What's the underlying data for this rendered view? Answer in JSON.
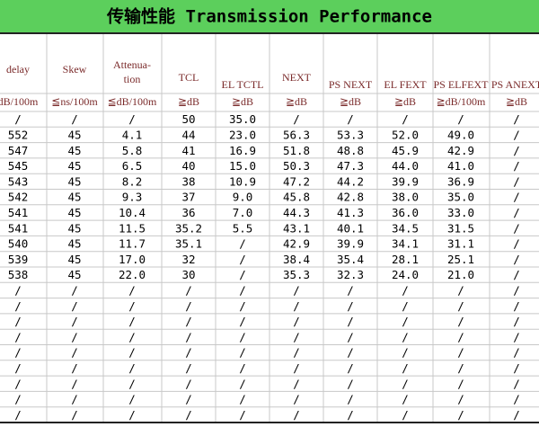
{
  "header": {
    "title": "传输性能 Transmission Performance"
  },
  "table": {
    "columns": [
      {
        "name": [
          "delay"
        ],
        "unit": "dB/100m"
      },
      {
        "name": [
          "Skew"
        ],
        "unit": "≦ns/100m"
      },
      {
        "name": [
          "Attenua-",
          "tion"
        ],
        "unit": "≦dB/100m"
      },
      {
        "name": [
          "TCL"
        ],
        "unit": "≧dB"
      },
      {
        "name": [
          "EL TCTL"
        ],
        "unit": "≧dB"
      },
      {
        "name": [
          "NEXT"
        ],
        "unit": "≧dB"
      },
      {
        "name": [
          "PS NEXT"
        ],
        "unit": "≧dB"
      },
      {
        "name": [
          "EL FEXT"
        ],
        "unit": "≧dB"
      },
      {
        "name": [
          "PS ELFEXT"
        ],
        "unit": "≧dB/100m"
      },
      {
        "name": [
          "PS ANEXT"
        ],
        "unit": "≧dB"
      }
    ],
    "rows": [
      [
        "/",
        "/",
        "/",
        "50",
        "35.0",
        "/",
        "/",
        "/",
        "/",
        "/"
      ],
      [
        "552",
        "45",
        "4.1",
        "44",
        "23.0",
        "56.3",
        "53.3",
        "52.0",
        "49.0",
        "/"
      ],
      [
        "547",
        "45",
        "5.8",
        "41",
        "16.9",
        "51.8",
        "48.8",
        "45.9",
        "42.9",
        "/"
      ],
      [
        "545",
        "45",
        "6.5",
        "40",
        "15.0",
        "50.3",
        "47.3",
        "44.0",
        "41.0",
        "/"
      ],
      [
        "543",
        "45",
        "8.2",
        "38",
        "10.9",
        "47.2",
        "44.2",
        "39.9",
        "36.9",
        "/"
      ],
      [
        "542",
        "45",
        "9.3",
        "37",
        "9.0",
        "45.8",
        "42.8",
        "38.0",
        "35.0",
        "/"
      ],
      [
        "541",
        "45",
        "10.4",
        "36",
        "7.0",
        "44.3",
        "41.3",
        "36.0",
        "33.0",
        "/"
      ],
      [
        "541",
        "45",
        "11.5",
        "35.2",
        "5.5",
        "43.1",
        "40.1",
        "34.5",
        "31.5",
        "/"
      ],
      [
        "540",
        "45",
        "11.7",
        "35.1",
        "/",
        "42.9",
        "39.9",
        "34.1",
        "31.1",
        "/"
      ],
      [
        "539",
        "45",
        "17.0",
        "32",
        "/",
        "38.4",
        "35.4",
        "28.1",
        "25.1",
        "/"
      ],
      [
        "538",
        "45",
        "22.0",
        "30",
        "/",
        "35.3",
        "32.3",
        "24.0",
        "21.0",
        "/"
      ],
      [
        "/",
        "/",
        "/",
        "/",
        "/",
        "/",
        "/",
        "/",
        "/",
        "/"
      ],
      [
        "/",
        "/",
        "/",
        "/",
        "/",
        "/",
        "/",
        "/",
        "/",
        "/"
      ],
      [
        "/",
        "/",
        "/",
        "/",
        "/",
        "/",
        "/",
        "/",
        "/",
        "/"
      ],
      [
        "/",
        "/",
        "/",
        "/",
        "/",
        "/",
        "/",
        "/",
        "/",
        "/"
      ],
      [
        "/",
        "/",
        "/",
        "/",
        "/",
        "/",
        "/",
        "/",
        "/",
        "/"
      ],
      [
        "/",
        "/",
        "/",
        "/",
        "/",
        "/",
        "/",
        "/",
        "/",
        "/"
      ],
      [
        "/",
        "/",
        "/",
        "/",
        "/",
        "/",
        "/",
        "/",
        "/",
        "/"
      ],
      [
        "/",
        "/",
        "/",
        "/",
        "/",
        "/",
        "/",
        "/",
        "/",
        "/"
      ],
      [
        "/",
        "/",
        "/",
        "/",
        "/",
        "/",
        "/",
        "/",
        "/",
        "/"
      ]
    ]
  }
}
